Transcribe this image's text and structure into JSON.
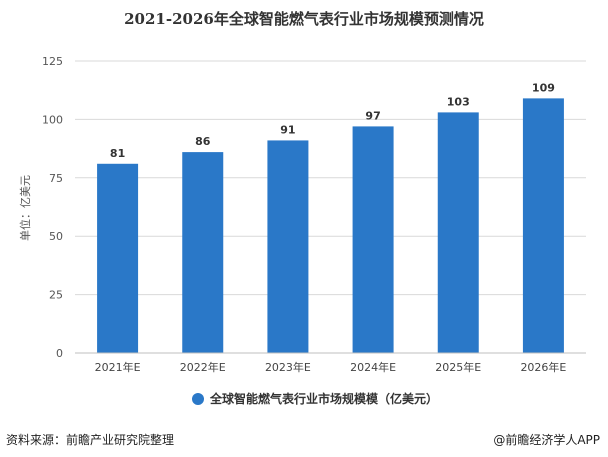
{
  "chart_data": {
    "type": "bar",
    "title": "2021-2026年全球智能燃气表行业市场规模预测情况",
    "categories": [
      "2021年E",
      "2022年E",
      "2023年E",
      "2024年E",
      "2025年E",
      "2026年E"
    ],
    "series": [
      {
        "name": "全球智能燃气表行业市场规模模（亿美元）",
        "values": [
          81,
          86,
          91,
          97,
          103,
          109
        ]
      }
    ],
    "data_labels": [
      "81",
      "86",
      "91",
      "97",
      "103",
      "109"
    ],
    "xlabel": "",
    "ylabel": "单位：亿美元",
    "ylim": [
      0,
      125
    ],
    "yticks": [
      "0",
      "25",
      "50",
      "75",
      "100",
      "125"
    ],
    "grid": true,
    "legend_position": "bottom",
    "colors": {
      "bar": "#2a78c8",
      "grid": "#d9d9d9",
      "axis": "#bfbfbf"
    }
  },
  "footer": {
    "source": "资料来源：前瞻产业研究院整理",
    "brand": "@前瞻经济学人APP"
  }
}
